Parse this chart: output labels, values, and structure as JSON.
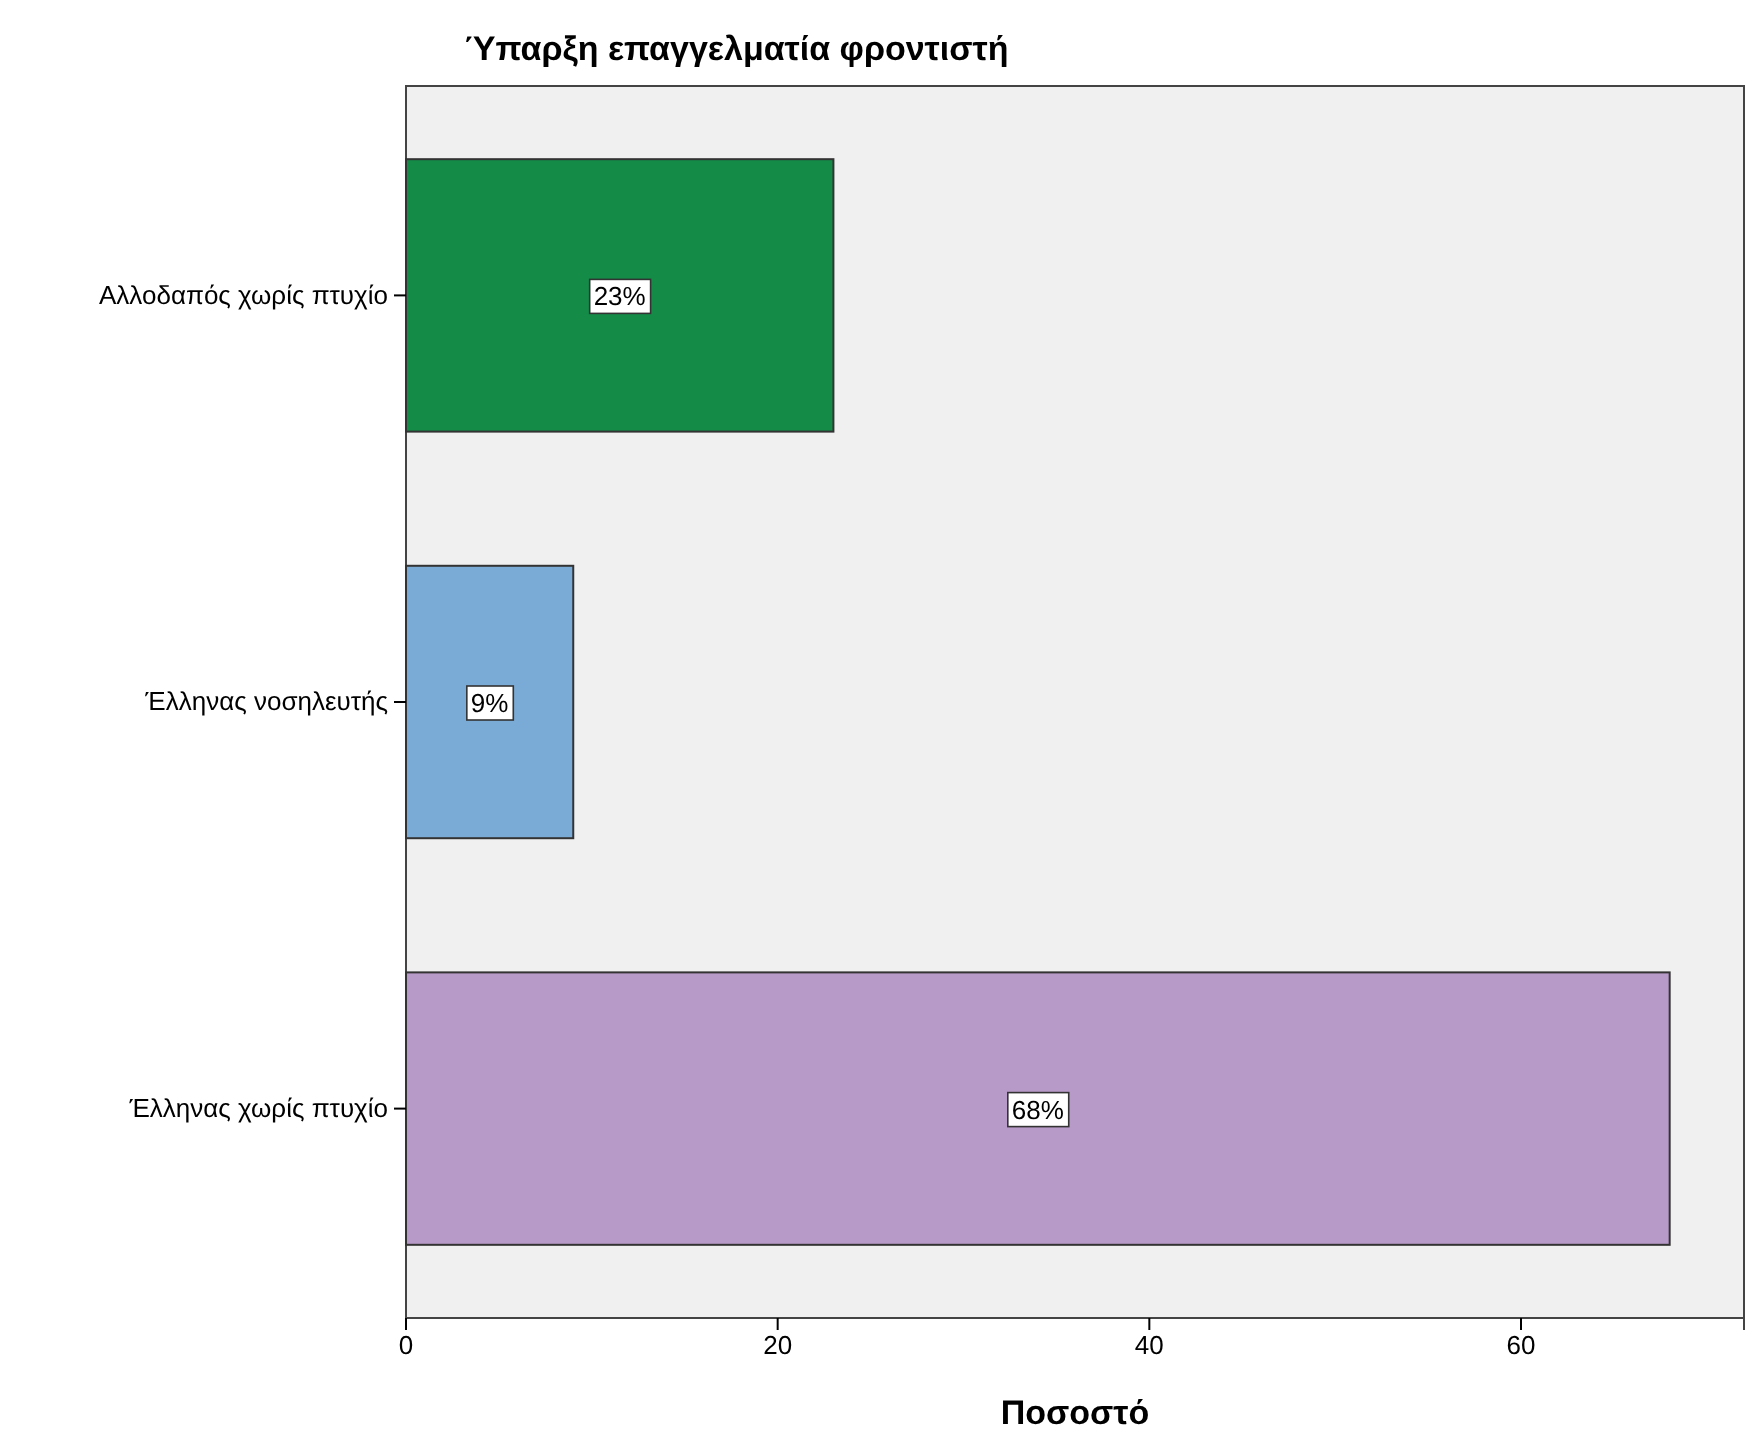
{
  "chart_data": {
    "type": "bar",
    "orientation": "horizontal",
    "title": "Ύπαρξη επαγγελματία φροντιστή",
    "xlabel": "Ποσοστό",
    "categories": [
      "Αλλοδαπός χωρίς πτυχίο",
      "Έλληνας νοσηλευτής",
      "Έλληνας χωρίς πτυχίο"
    ],
    "values": [
      23,
      9,
      68
    ],
    "colors": [
      "#148c48",
      "#7aaad6",
      "#b89ac8"
    ],
    "value_labels": [
      "23%",
      "9%",
      "68%"
    ],
    "xlim": [
      0,
      72
    ],
    "xticks": [
      0,
      20,
      40,
      60
    ],
    "grid": false
  }
}
